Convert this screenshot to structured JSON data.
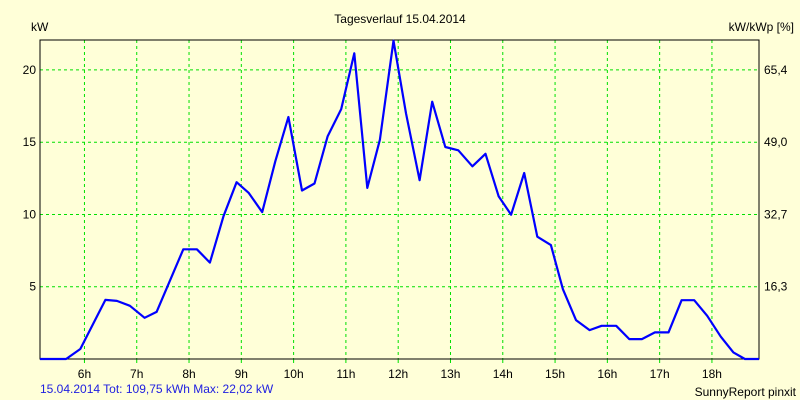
{
  "chart_data": {
    "type": "line",
    "title": "Tagesverlauf 15.04.2014",
    "ylabel": "kW",
    "y2label": "kW/kWp [%]",
    "xlim": [
      5.15,
      18.9
    ],
    "ylim": [
      0,
      22.07
    ],
    "grid": true,
    "x_ticks": [
      6,
      7,
      8,
      9,
      10,
      11,
      12,
      13,
      14,
      15,
      16,
      17,
      18
    ],
    "x_tick_labels": [
      "6h",
      "7h",
      "8h",
      "9h",
      "10h",
      "11h",
      "12h",
      "13h",
      "14h",
      "15h",
      "16h",
      "17h",
      "18h"
    ],
    "y_ticks": [
      5,
      10,
      15,
      20
    ],
    "y_tick_labels": [
      "5",
      "10",
      "15",
      "20"
    ],
    "y2_tick_labels": [
      "16,3",
      "32,7",
      "49,0",
      "65,4"
    ],
    "series": [
      {
        "name": "kW",
        "color": "#0000ff",
        "x": [
          5.15,
          5.65,
          5.92,
          6.4,
          6.62,
          6.87,
          7.15,
          7.38,
          7.89,
          8.15,
          8.4,
          8.66,
          8.91,
          9.14,
          9.4,
          9.65,
          9.9,
          10.16,
          10.4,
          10.65,
          10.91,
          11.16,
          11.41,
          11.65,
          11.91,
          12.15,
          12.41,
          12.65,
          12.9,
          13.15,
          13.42,
          13.67,
          13.92,
          14.16,
          14.41,
          14.66,
          14.92,
          15.15,
          15.4,
          15.66,
          15.89,
          16.17,
          16.42,
          16.66,
          16.91,
          17.17,
          17.42,
          17.66,
          17.91,
          18.17,
          18.41,
          18.63,
          18.9
        ],
        "values": [
          0,
          0,
          0.69,
          4.09,
          4.02,
          3.68,
          2.85,
          3.26,
          7.59,
          7.59,
          6.67,
          9.88,
          12.23,
          11.5,
          10.16,
          13.68,
          16.74,
          11.66,
          12.14,
          15.4,
          17.29,
          21.15,
          11.84,
          15.17,
          22.02,
          17.0,
          12.37,
          17.8,
          14.67,
          14.44,
          13.33,
          14.2,
          11.26,
          9.98,
          12.87,
          8.46,
          7.88,
          4.83,
          2.69,
          2.0,
          2.3,
          2.3,
          1.38,
          1.38,
          1.84,
          1.84,
          4.07,
          4.07,
          2.99,
          1.54,
          0.46,
          0,
          0
        ]
      }
    ],
    "colors": {
      "background": "#ffffd8",
      "grid": "#00e000",
      "line": "#0000ff",
      "footer": "#2020e0"
    }
  },
  "footer": "15.04.2014 Tot: 109,75 kWh Max: 22,02 kW",
  "credit": "SunnyReport pinxit"
}
